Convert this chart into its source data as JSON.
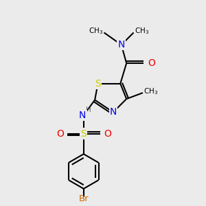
{
  "bg_color": "#ebebeb",
  "atom_colors": {
    "C": "#000000",
    "N": "#0000ee",
    "O": "#ee0000",
    "S": "#cccc00",
    "Br": "#cc6600",
    "H": "#606060"
  },
  "font_size": 8.5,
  "fig_size": [
    3.0,
    3.0
  ],
  "dpi": 100
}
